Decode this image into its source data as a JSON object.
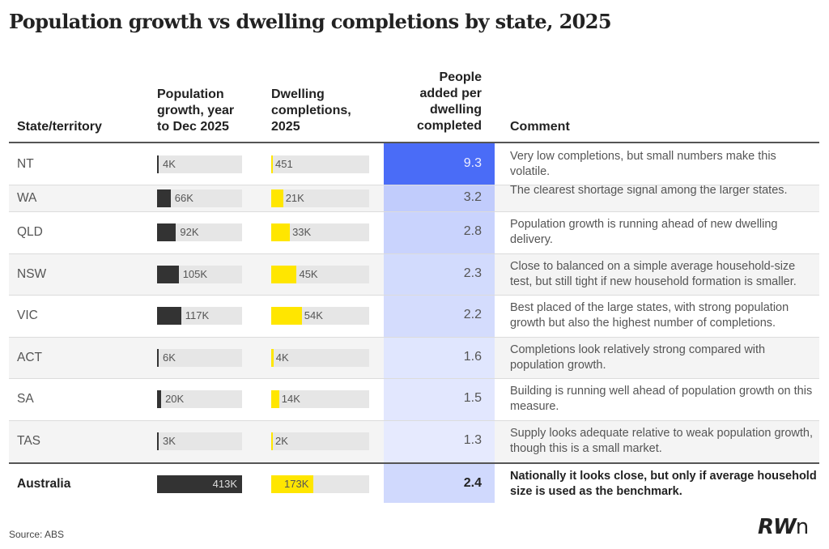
{
  "title": "Population growth vs dwelling completions by state, 2025",
  "headers": {
    "state": "State/territory",
    "pop": "Population growth, year to Dec 2025",
    "dw": "Dwelling completions, 2025",
    "ratio": "People added per dwelling completed",
    "comment": "Comment"
  },
  "source": "Source: ABS",
  "logo": "RWn",
  "chart_data": {
    "type": "table",
    "title": "Population growth vs dwelling completions by state, 2025",
    "columns": [
      "State/territory",
      "Population growth, year to Dec 2025",
      "Dwelling completions, 2025",
      "People added per dwelling completed",
      "Comment"
    ],
    "pop_max": 413000,
    "dw_max": 173000,
    "ratio_max": 9.3,
    "colors": {
      "pop_bar": "#333333",
      "dw_bar": "#ffe600",
      "ratio_high": "#4a6cf7",
      "ratio_low": "#ffffff",
      "bar_track": "#e6e6e6"
    },
    "rows": [
      {
        "state": "NT",
        "pop": 4000,
        "pop_label": "4K",
        "dw": 451,
        "dw_label": "451",
        "ratio": 9.3,
        "ratio_label": "9.3",
        "comment": "Very low completions, but small numbers make this volatile."
      },
      {
        "state": "WA",
        "pop": 66000,
        "pop_label": "66K",
        "dw": 21000,
        "dw_label": "21K",
        "ratio": 3.2,
        "ratio_label": "3.2",
        "comment": "The clearest shortage signal among the larger states."
      },
      {
        "state": "QLD",
        "pop": 92000,
        "pop_label": "92K",
        "dw": 33000,
        "dw_label": "33K",
        "ratio": 2.8,
        "ratio_label": "2.8",
        "comment": "Population growth is running ahead of new dwelling delivery."
      },
      {
        "state": "NSW",
        "pop": 105000,
        "pop_label": "105K",
        "dw": 45000,
        "dw_label": "45K",
        "ratio": 2.3,
        "ratio_label": "2.3",
        "comment": "Close to balanced on a simple average household-size test, but still tight if new household formation is smaller."
      },
      {
        "state": "VIC",
        "pop": 117000,
        "pop_label": "117K",
        "dw": 54000,
        "dw_label": "54K",
        "ratio": 2.2,
        "ratio_label": "2.2",
        "comment": "Best placed of the large states, with strong population growth but also the highest number of completions."
      },
      {
        "state": "ACT",
        "pop": 6000,
        "pop_label": "6K",
        "dw": 4000,
        "dw_label": "4K",
        "ratio": 1.6,
        "ratio_label": "1.6",
        "comment": "Completions look relatively strong compared with population growth."
      },
      {
        "state": "SA",
        "pop": 20000,
        "pop_label": "20K",
        "dw": 14000,
        "dw_label": "14K",
        "ratio": 1.5,
        "ratio_label": "1.5",
        "comment": "Building is running well ahead of population growth on this measure."
      },
      {
        "state": "TAS",
        "pop": 3000,
        "pop_label": "3K",
        "dw": 2000,
        "dw_label": "2K",
        "ratio": 1.3,
        "ratio_label": "1.3",
        "comment": "Supply looks adequate relative to weak population growth, though this is a small market."
      },
      {
        "state": "Australia",
        "pop": 413000,
        "pop_label": "413K",
        "dw": 173000,
        "dw_label": "173K",
        "ratio": 2.4,
        "ratio_label": "2.4",
        "comment": "Nationally it looks close, but only if average household size is used as the benchmark.",
        "total": true
      }
    ]
  }
}
